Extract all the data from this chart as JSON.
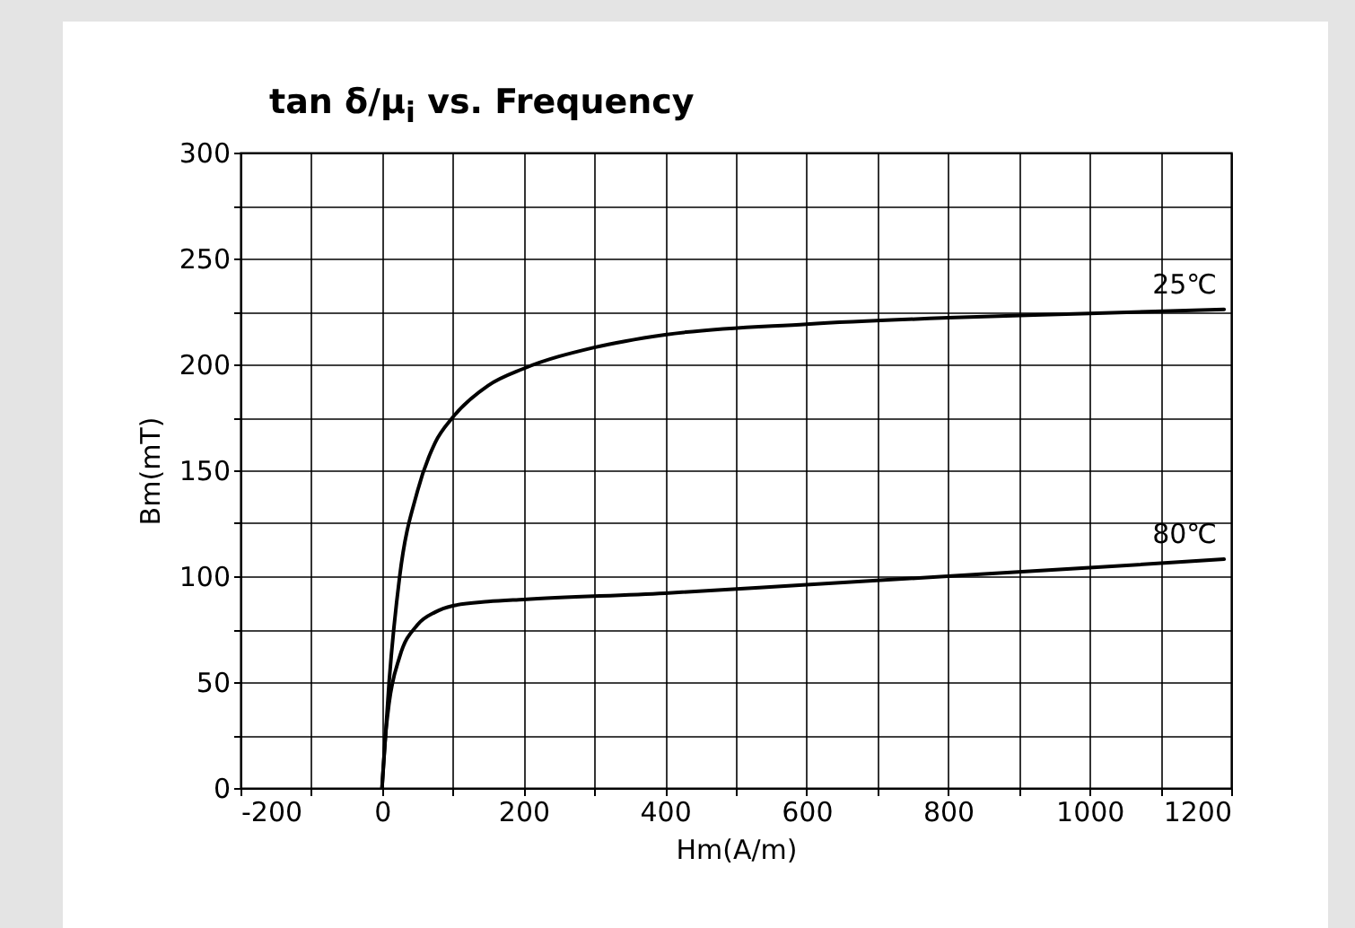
{
  "chart_data": {
    "type": "line",
    "title": "tan δ/μ$_{i}$ vs. Frequency",
    "xlabel": "Hm(A/m)",
    "ylabel": "Bm(mT)",
    "xlim": [
      -200,
      1200
    ],
    "xticks": [
      -200,
      {
        "value": -100,
        "label": null
      },
      0,
      {
        "value": 100,
        "label": null
      },
      200,
      {
        "value": 300,
        "label": null
      },
      400,
      {
        "value": 500,
        "label": null
      },
      600,
      {
        "value": 700,
        "label": null
      },
      800,
      {
        "value": 900,
        "label": null
      },
      1000,
      {
        "value": 1100,
        "label": null
      },
      1200
    ],
    "ylim": [
      0,
      300
    ],
    "yticks": [
      0,
      {
        "value": 25,
        "label": null
      },
      50,
      {
        "value": 75,
        "label": null
      },
      100,
      {
        "value": 125,
        "label": null
      },
      150,
      {
        "value": 175,
        "label": null
      },
      200,
      {
        "value": 225,
        "label": null
      },
      250,
      {
        "value": 275,
        "label": null
      },
      300
    ],
    "grid": true,
    "legend": false,
    "line_style": "solid",
    "series": [
      {
        "name": "25℃",
        "color": "#000000",
        "x": [
          0,
          10,
          25,
          50,
          75,
          100,
          150,
          200,
          300,
          400,
          600,
          800,
          1000,
          1190
        ],
        "values": [
          0,
          50,
          100,
          140,
          163,
          175,
          190,
          198,
          208,
          214,
          219,
          222,
          224,
          226
        ]
      },
      {
        "name": "80℃",
        "color": "#000000",
        "x": [
          0,
          5,
          10,
          25,
          50,
          75,
          100,
          150,
          200,
          400,
          600,
          800,
          1000,
          1190
        ],
        "values": [
          0,
          25,
          40,
          62,
          77,
          83,
          86,
          88,
          89,
          92,
          96,
          100,
          104,
          108
        ]
      }
    ]
  }
}
